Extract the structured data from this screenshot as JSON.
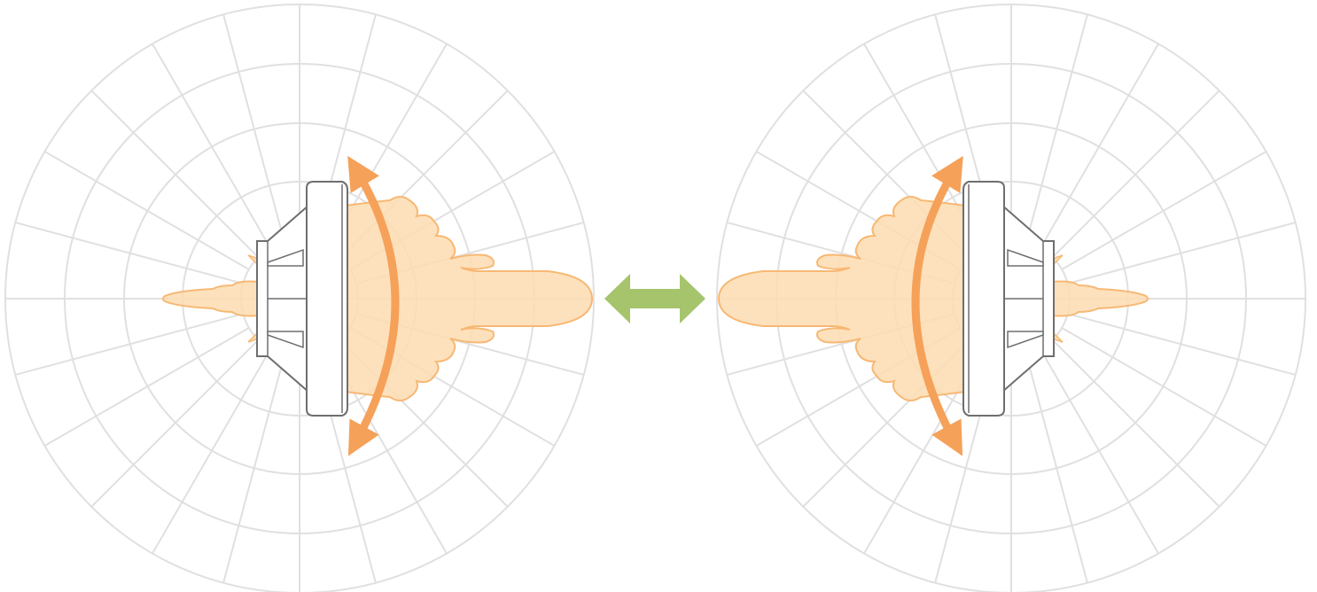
{
  "diagram": {
    "title": "",
    "description_items": [],
    "antennas": [
      {
        "id": "left",
        "facing": "right"
      },
      {
        "id": "right",
        "facing": "left"
      }
    ],
    "link_arrow": {
      "direction": "bidirectional"
    },
    "polar_grid": {
      "rings": 5,
      "spokes": 24
    },
    "colors": {
      "grid": "#e0e0e0",
      "pattern_fill": "#fddcb0",
      "pattern_stroke": "#f7b874",
      "tilt_arrow": "#f5a159",
      "link_arrow": "#a5c46c",
      "antenna_stroke": "#6e6e6e",
      "antenna_fill": "#ffffff"
    }
  }
}
